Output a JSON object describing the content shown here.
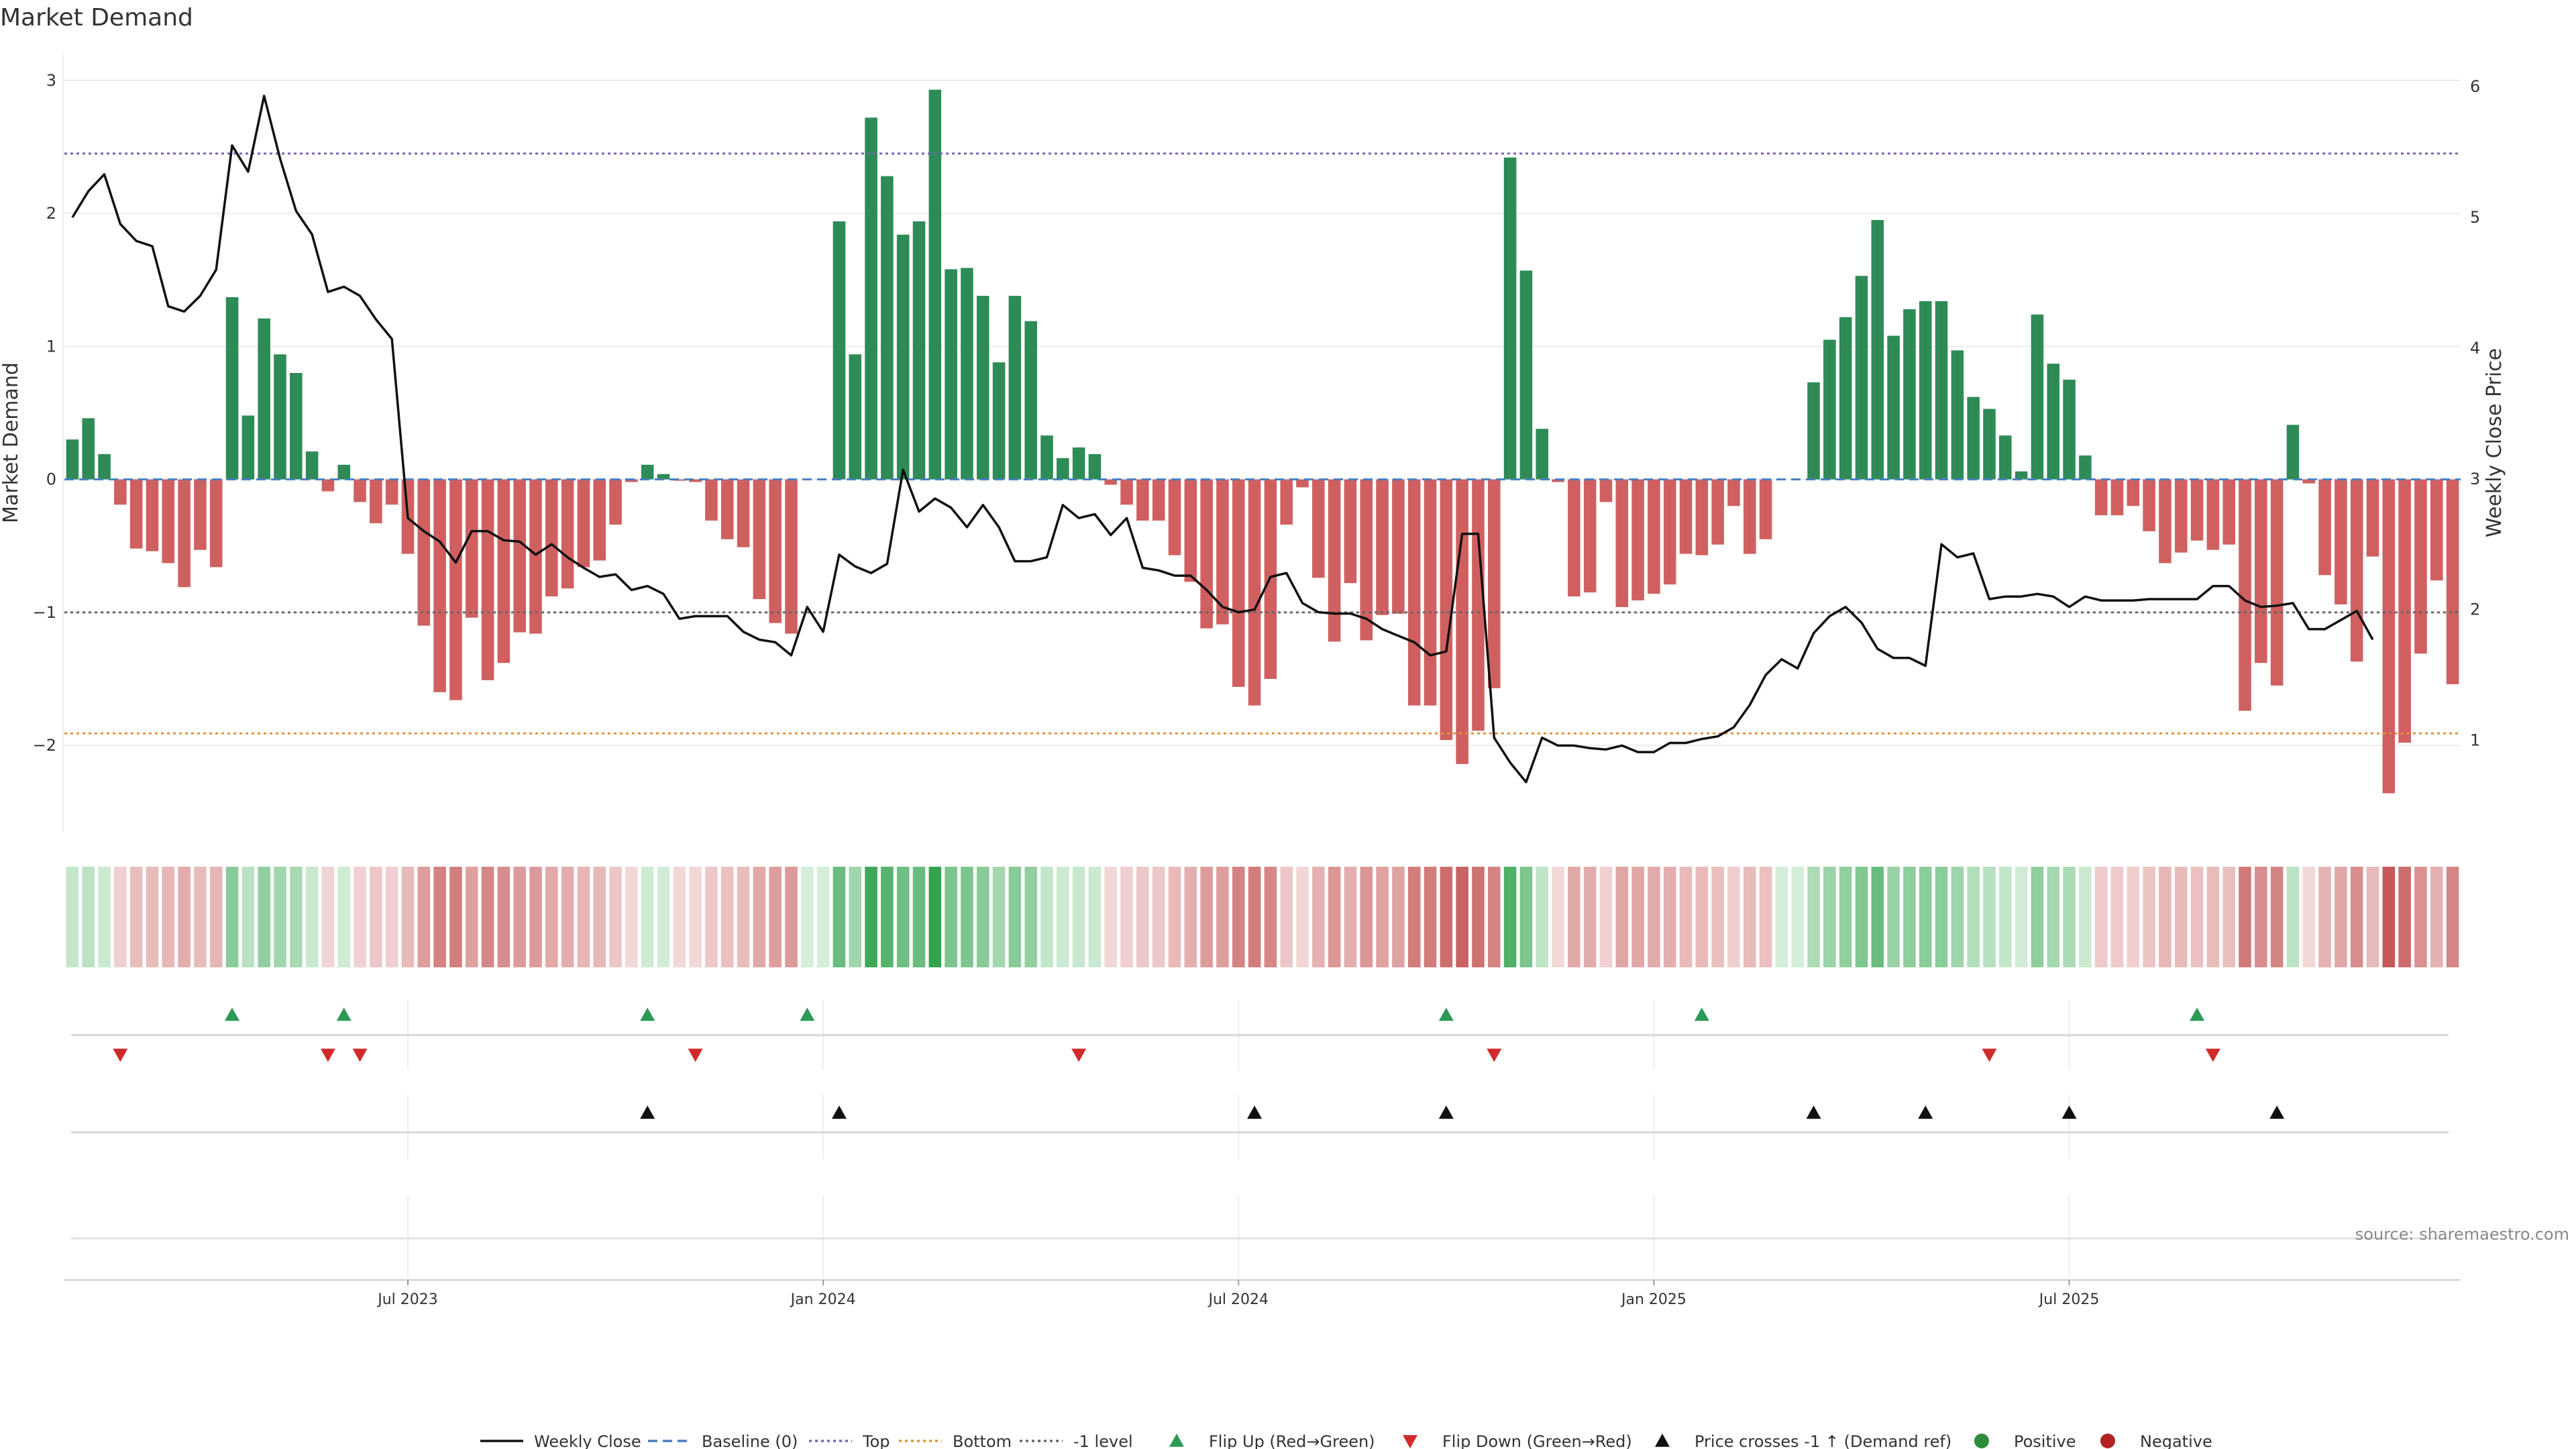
{
  "chart_data": {
    "type": "bar+line",
    "title": "Market Demand",
    "ylabel_left": "Market Demand",
    "ylabel_right": "Weekly Close Price",
    "ylim_left": [
      -2.65,
      3.1
    ],
    "ylim_right": [
      0.3,
      6.15
    ],
    "yticks_left": [
      -2,
      -1,
      0,
      1,
      2,
      3
    ],
    "yticks_right": [
      1,
      2,
      3,
      4,
      5,
      6
    ],
    "date_ticks": [
      "Jul 2023",
      "Jan 2024",
      "Jul 2024",
      "Jan 2025",
      "Jul 2025"
    ],
    "date_tick_weeks": [
      21.5,
      47.5,
      73.5,
      99.5,
      125.5
    ],
    "reference_lines": {
      "top": 2.45,
      "bottom": -1.91,
      "minus_one": -1.0
    },
    "demand": [
      0.3,
      0.46,
      0.19,
      -0.19,
      -0.52,
      -0.54,
      -0.63,
      -0.81,
      -0.53,
      -0.66,
      1.37,
      0.48,
      1.21,
      0.94,
      0.8,
      0.21,
      -0.09,
      0.11,
      -0.17,
      -0.33,
      -0.19,
      -0.56,
      -1.1,
      -1.6,
      -1.66,
      -1.04,
      -1.51,
      -1.38,
      -1.15,
      -1.16,
      -0.88,
      -0.82,
      -0.66,
      -0.61,
      -0.34,
      -0.02,
      0.11,
      0.04,
      -0.01,
      -0.02,
      -0.31,
      -0.45,
      -0.51,
      -0.9,
      -1.08,
      -1.16,
      0,
      0,
      1.94,
      0.94,
      2.72,
      2.28,
      1.84,
      1.94,
      2.93,
      1.58,
      1.59,
      1.38,
      0.88,
      1.38,
      1.19,
      0.33,
      0.16,
      0.24,
      0.19,
      -0.04,
      -0.19,
      -0.31,
      -0.31,
      -0.57,
      -0.77,
      -1.12,
      -1.09,
      -1.56,
      -1.7,
      -1.5,
      -0.34,
      -0.06,
      -0.74,
      -1.22,
      -0.78,
      -1.21,
      -1.02,
      -1.01,
      -1.7,
      -1.7,
      -1.96,
      -2.14,
      -1.89,
      -1.57,
      2.42,
      1.57,
      0.38,
      -0.02,
      -0.88,
      -0.85,
      -0.17,
      -0.96,
      -0.91,
      -0.86,
      -0.79,
      -0.56,
      -0.57,
      -0.49,
      -0.2,
      -0.56,
      -0.45,
      0,
      0,
      0.73,
      1.05,
      1.22,
      1.53,
      1.95,
      1.08,
      1.28,
      1.34,
      1.34,
      0.97,
      0.62,
      0.53,
      0.33,
      0.06,
      1.24,
      0.87,
      0.75,
      0.18,
      -0.27,
      -0.27,
      -0.2,
      -0.39,
      -0.63,
      -0.55,
      -0.46,
      -0.53,
      -0.49,
      -1.74,
      -1.38,
      -1.55,
      0.41,
      -0.03,
      -0.72,
      -0.94,
      -1.37,
      -0.58,
      -2.36,
      -1.98,
      -1.31,
      -0.76,
      -1.54
    ],
    "weekly_close": [
      5.0,
      5.2,
      5.33,
      4.95,
      4.82,
      4.78,
      4.32,
      4.28,
      4.4,
      4.6,
      5.55,
      5.35,
      5.93,
      5.45,
      5.05,
      4.87,
      4.43,
      4.47,
      4.4,
      4.22,
      4.07,
      2.7,
      2.6,
      2.52,
      2.36,
      2.6,
      2.6,
      2.53,
      2.52,
      2.42,
      2.5,
      2.4,
      2.32,
      2.25,
      2.27,
      2.15,
      2.18,
      2.12,
      1.93,
      1.95,
      1.95,
      1.95,
      1.83,
      1.77,
      1.75,
      1.65,
      2.02,
      1.83,
      2.42,
      2.33,
      2.28,
      2.35,
      3.07,
      2.75,
      2.85,
      2.78,
      2.63,
      2.8,
      2.63,
      2.37,
      2.37,
      2.4,
      2.8,
      2.7,
      2.73,
      2.57,
      2.7,
      2.32,
      2.3,
      2.26,
      2.26,
      2.15,
      2.02,
      1.98,
      2.0,
      2.25,
      2.28,
      2.05,
      1.98,
      1.97,
      1.97,
      1.93,
      1.85,
      1.8,
      1.75,
      1.65,
      1.68,
      2.58,
      2.58,
      1.02,
      0.83,
      0.68,
      1.02,
      0.96,
      0.96,
      0.94,
      0.93,
      0.96,
      0.91,
      0.91,
      0.98,
      0.98,
      1.01,
      1.03,
      1.1,
      1.27,
      1.5,
      1.62,
      1.55,
      1.82,
      1.95,
      2.02,
      1.9,
      1.7,
      1.63,
      1.63,
      1.57,
      2.5,
      2.4,
      2.43,
      2.08,
      2.1,
      2.1,
      2.12,
      2.1,
      2.02,
      2.1,
      2.07,
      2.07,
      2.07,
      2.08,
      2.08,
      2.08,
      2.08,
      2.18,
      2.18,
      2.07,
      2.02,
      2.03,
      2.05,
      1.85,
      1.85,
      1.92,
      1.99,
      1.77
    ],
    "top_strip_title": "",
    "flip_up_weeks": [
      10,
      17,
      36,
      46,
      86,
      102,
      133
    ],
    "flip_down_weeks": [
      3,
      16,
      18,
      39,
      63,
      89,
      120,
      134
    ],
    "price_cross_weeks": [
      36,
      48,
      74,
      86,
      109,
      116,
      125,
      138
    ],
    "source_text": "source: sharemaestro.com",
    "legend": [
      {
        "label": "Weekly Close",
        "kind": "solid-line",
        "color": "#111111"
      },
      {
        "label": "Baseline (0)",
        "kind": "dashed-line",
        "color": "#4a7fc0"
      },
      {
        "label": "Top",
        "kind": "dotted-line",
        "color": "#7a62b8"
      },
      {
        "label": "Bottom",
        "kind": "dotted-line",
        "color": "#e0933a"
      },
      {
        "label": "-1 level",
        "kind": "dotted-line",
        "color": "#666666"
      },
      {
        "label": "Flip Up (Red→Green)",
        "kind": "triangle-up",
        "color": "#2a9a55"
      },
      {
        "label": "Flip Down (Green→Red)",
        "kind": "triangle-down",
        "color": "#d12a2a"
      },
      {
        "label": "Price crosses -1 ↑ (Demand ref)",
        "kind": "triangle-up",
        "color": "#111111"
      },
      {
        "label": "Positive",
        "kind": "dot",
        "color": "#2e8b3a"
      },
      {
        "label": "Negative",
        "kind": "dot",
        "color": "#b22222"
      }
    ]
  },
  "colors": {
    "bar_positive": "#2e8b57",
    "bar_negative": "#d06060",
    "line": "#111111",
    "top_line": "#7a62b8",
    "bottom_line": "#e0933a",
    "minus_one_line": "#666666",
    "baseline": "#4a7fc0"
  }
}
